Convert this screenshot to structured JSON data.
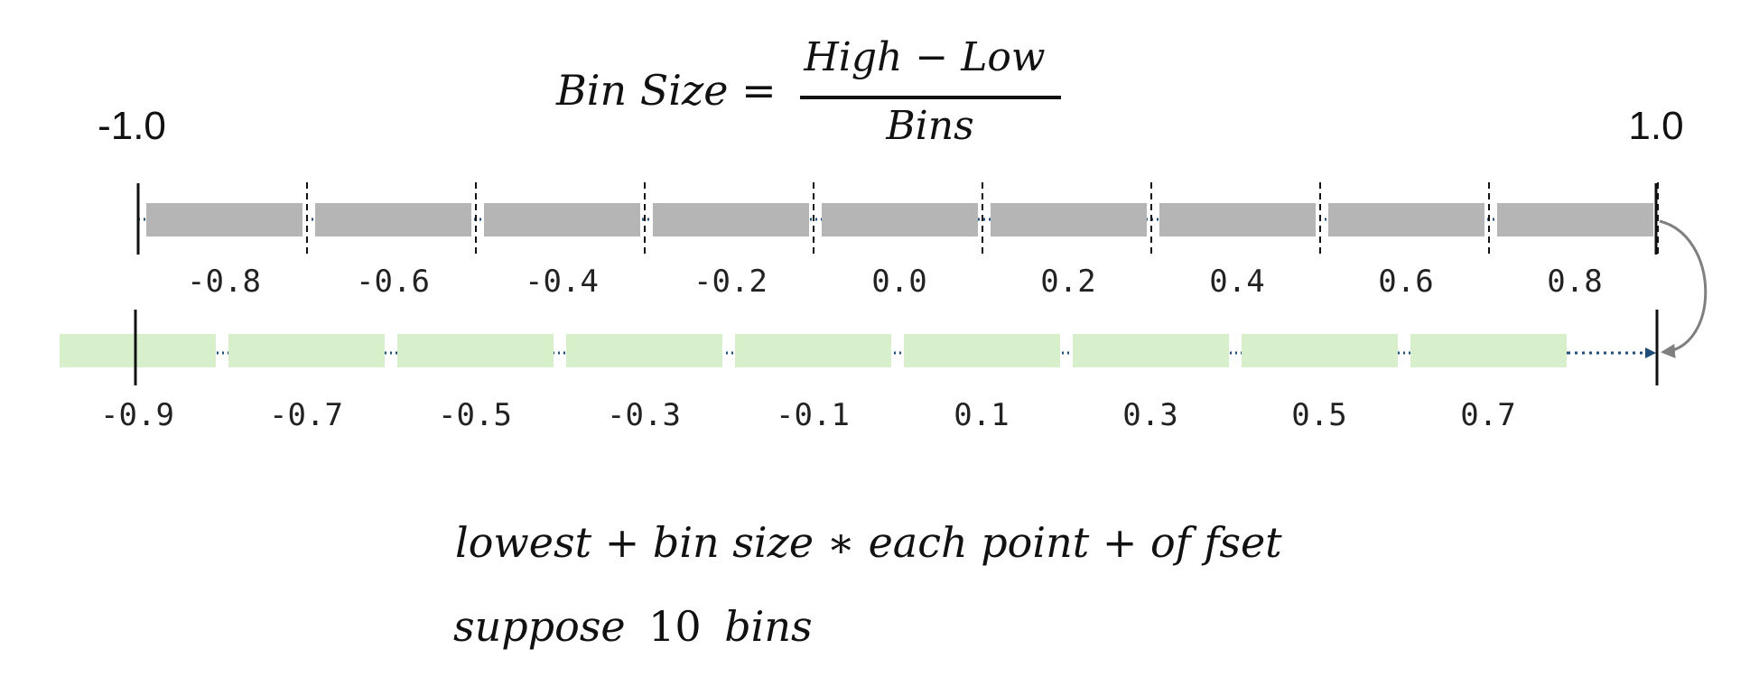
{
  "formula": {
    "lhs": "Bin Size =",
    "numerator": "High  − Low",
    "denominator": "Bins"
  },
  "range": {
    "low_label": "-1.0",
    "high_label": "1.0",
    "low": -1.0,
    "high": 1.0,
    "bins": 10
  },
  "top_row": {
    "labels": [
      "-0.8",
      "-0.6",
      "-0.4",
      "-0.2",
      "0.0",
      "0.2",
      "0.4",
      "0.6",
      "0.8"
    ],
    "bar_color": "#b5b5b5"
  },
  "bottom_row": {
    "labels": [
      "-0.9",
      "-0.7",
      "-0.5",
      "-0.3",
      "-0.1",
      "0.1",
      "0.3",
      "0.5",
      "0.7"
    ],
    "bar_color": "#d8efcc"
  },
  "colors": {
    "dotted_line": "#1f4e79",
    "curve_arrow": "#7f7f7f"
  },
  "notes": {
    "line1": "lowest + bin size  ∗ each point + of fset",
    "line2_word1": "suppose",
    "line2_number": "10",
    "line2_word2": "bins"
  }
}
